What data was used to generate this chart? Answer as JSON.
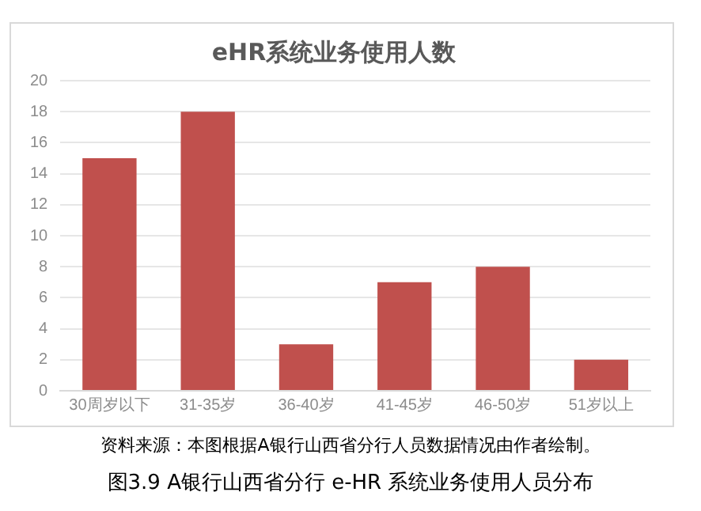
{
  "chart_data": {
    "type": "bar",
    "title": "eHR系统业务使用人数",
    "categories": [
      "30周岁以下",
      "31-35岁",
      "36-40岁",
      "41-45岁",
      "46-50岁",
      "51岁以上"
    ],
    "values": [
      15,
      18,
      3,
      7,
      8,
      2
    ],
    "color": "#c0504d",
    "ylim": [
      0,
      20
    ],
    "yticks": [
      0,
      2,
      4,
      6,
      8,
      10,
      12,
      14,
      16,
      18,
      20
    ],
    "grid": "y",
    "annotations": [
      "资料来源：本图根据A银行山西省分行人员数据情况由作者绘制。",
      "图3.9 A银行山西省分行 e-HR 系统业务使用人员分布"
    ]
  }
}
